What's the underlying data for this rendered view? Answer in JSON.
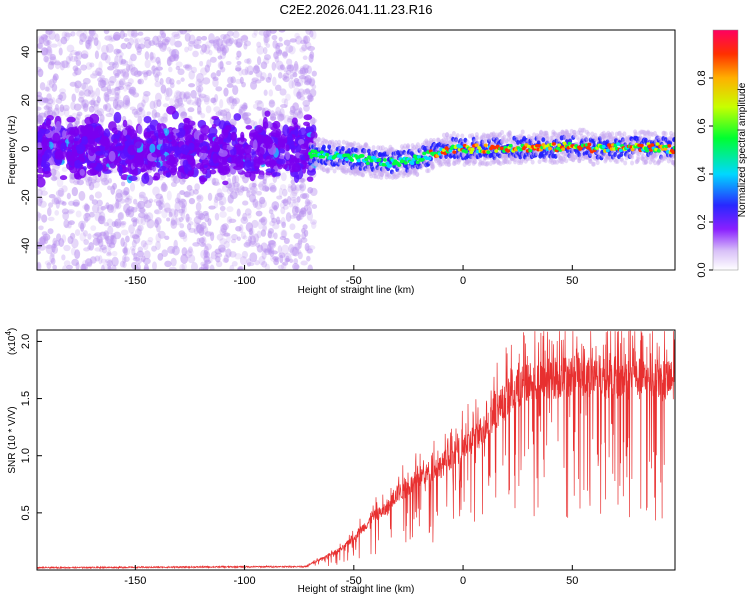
{
  "title": "C2E2.2026.041.11.23.R16",
  "chart_data": [
    {
      "type": "heatmap",
      "name": "spectrogram",
      "xlabel": "Height of straight line (km)",
      "ylabel": "Frequency (Hz)",
      "xlim": [
        -195,
        97
      ],
      "ylim": [
        -50,
        49
      ],
      "xticks": [
        -150,
        -100,
        -50,
        0,
        50
      ],
      "yticks": [
        -40,
        -20,
        0,
        20,
        40
      ],
      "noise_end_km": -70,
      "ridge": {
        "x": [
          -70,
          -60,
          -50,
          -40,
          -35,
          -30,
          -25,
          -20,
          -15,
          -10,
          -5,
          0,
          10,
          20,
          30,
          40,
          50,
          55,
          60,
          70,
          80,
          90,
          95
        ],
        "y": [
          -2,
          -3,
          -4,
          -5,
          -6,
          -5.5,
          -5,
          -4,
          -2.5,
          -1,
          0,
          0,
          0,
          0.5,
          0.5,
          0.5,
          1,
          1.5,
          0,
          0.5,
          0.5,
          0.5,
          0
        ]
      },
      "colorbar": {
        "label": "Normalized spectral amplitude",
        "range": [
          0,
          1
        ],
        "ticks": [
          "0.0",
          "0.2",
          "0.4",
          "0.6",
          "0.8"
        ],
        "colors": [
          "#ffffff",
          "#c8a8f0",
          "#7a00ff",
          "#2020ff",
          "#00d0ff",
          "#00ff40",
          "#c8ff00",
          "#ffb000",
          "#ff3000",
          "#ff0060"
        ]
      }
    },
    {
      "type": "line",
      "name": "snr",
      "xlabel": "Height of straight line (km)",
      "ylabel": "SNR (10 * V/V)",
      "multiplier_label": "(x10",
      "multiplier_exp": "4",
      "multiplier_close": ")",
      "xlim": [
        -195,
        97
      ],
      "ylim": [
        0,
        2.1
      ],
      "xticks": [
        -150,
        -100,
        -50,
        0,
        50
      ],
      "yticks": [
        "0.5",
        "1.0",
        "1.5",
        "2.0"
      ],
      "color": "#e83030",
      "envelope": {
        "x": [
          -195,
          -72,
          -65,
          -55,
          -50,
          -45,
          -40,
          -35,
          -30,
          -25,
          -20,
          -15,
          -10,
          -5,
          0,
          5,
          10,
          15,
          20,
          25,
          30,
          35,
          40,
          45,
          50,
          55,
          60,
          65,
          70,
          75,
          80,
          85,
          90,
          95
        ],
        "y": [
          0.02,
          0.03,
          0.1,
          0.2,
          0.3,
          0.4,
          0.5,
          0.55,
          0.7,
          0.75,
          0.85,
          0.9,
          0.95,
          1.05,
          1.1,
          1.2,
          1.3,
          1.45,
          1.55,
          1.65,
          1.7,
          1.72,
          1.75,
          1.76,
          1.78,
          1.78,
          1.77,
          1.76,
          1.75,
          1.74,
          1.74,
          1.73,
          1.73,
          1.72
        ]
      }
    }
  ]
}
